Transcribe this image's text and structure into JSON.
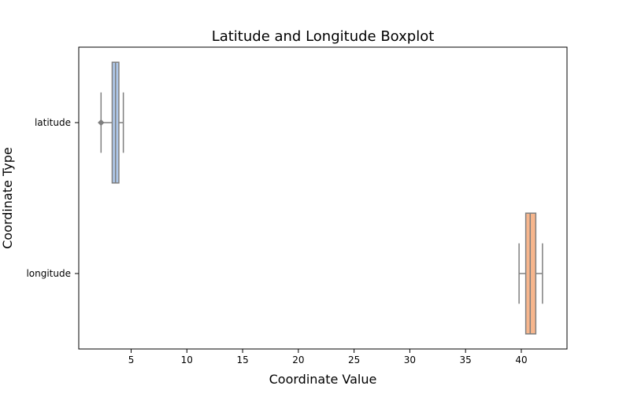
{
  "chart_data": {
    "type": "boxplot",
    "orientation": "horizontal",
    "title": "Latitude and Longitude Boxplot",
    "xlabel": "Coordinate Value",
    "ylabel": "Coordinate Type",
    "categories": [
      "latitude",
      "longitude"
    ],
    "xlim": [
      0.3,
      44.1
    ],
    "xticks": [
      5,
      10,
      15,
      20,
      25,
      30,
      35,
      40
    ],
    "grid": false,
    "legend": "none",
    "series": [
      {
        "category": "latitude",
        "whisker_low": 2.3,
        "q1": 3.3,
        "median": 3.6,
        "q3": 3.9,
        "whisker_high": 4.3,
        "outliers": [
          2.3
        ],
        "color": "#aec7e8"
      },
      {
        "category": "longitude",
        "whisker_low": 39.8,
        "q1": 40.4,
        "median": 40.8,
        "q3": 41.3,
        "whisker_high": 41.9,
        "outliers": [],
        "color": "#f7b68d"
      }
    ]
  }
}
